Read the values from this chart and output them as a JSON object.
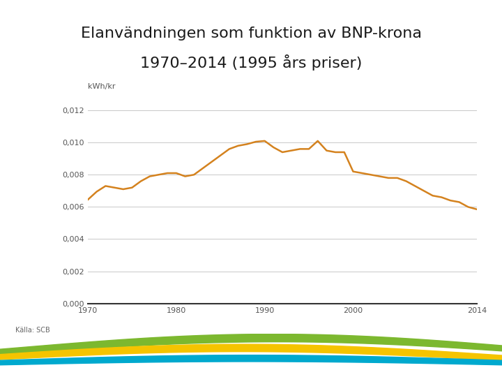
{
  "title_line1": "Elanvändningen som funktion av BNP-krona",
  "title_line2": "1970–2014 (1995 års priser)",
  "ylabel": "kWh/kr",
  "source": "Källa: SCB",
  "line_color": "#D4821E",
  "line_width": 1.8,
  "bg_color": "#ffffff",
  "grid_color": "#c8c8c8",
  "yticks": [
    0.0,
    0.002,
    0.004,
    0.006,
    0.008,
    0.01,
    0.012
  ],
  "ytick_labels": [
    "0,000",
    "0,002",
    "0,004",
    "0,006",
    "0,008",
    "0,010",
    "0,012"
  ],
  "xticks": [
    1970,
    1980,
    1990,
    2000,
    2014
  ],
  "xlim": [
    1970,
    2014
  ],
  "ylim": [
    0.0,
    0.013
  ],
  "years": [
    1970,
    1971,
    1972,
    1973,
    1974,
    1975,
    1976,
    1977,
    1978,
    1979,
    1980,
    1981,
    1982,
    1983,
    1984,
    1985,
    1986,
    1987,
    1988,
    1989,
    1990,
    1991,
    1992,
    1993,
    1994,
    1995,
    1996,
    1997,
    1998,
    1999,
    2000,
    2001,
    2002,
    2003,
    2004,
    2005,
    2006,
    2007,
    2008,
    2009,
    2010,
    2011,
    2012,
    2013,
    2014
  ],
  "values": [
    0.00645,
    0.00695,
    0.0073,
    0.0072,
    0.0071,
    0.0072,
    0.0076,
    0.0079,
    0.008,
    0.0081,
    0.0081,
    0.0079,
    0.008,
    0.0084,
    0.0088,
    0.0092,
    0.0096,
    0.0098,
    0.0099,
    0.01005,
    0.0101,
    0.0097,
    0.0094,
    0.0095,
    0.0096,
    0.0096,
    0.0101,
    0.0095,
    0.0094,
    0.0094,
    0.0082,
    0.0081,
    0.008,
    0.0079,
    0.0078,
    0.0078,
    0.0076,
    0.0073,
    0.007,
    0.0067,
    0.0066,
    0.0064,
    0.0063,
    0.006,
    0.00585
  ],
  "title_fontsize": 16,
  "axis_fontsize": 8,
  "source_fontsize": 7,
  "ylabel_fontsize": 8
}
